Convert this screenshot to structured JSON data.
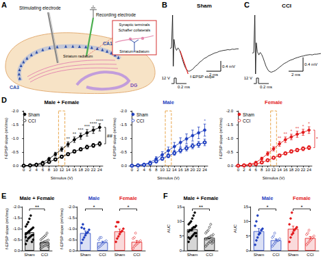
{
  "panels": [
    "A",
    "B",
    "C",
    "D",
    "E",
    "F"
  ],
  "diagram": {
    "stimulating_electrode": "Stimulating electrode",
    "recording_electrode": "Recording electrode",
    "ca1": "CA1",
    "ca3": "CA3",
    "dg": "DG",
    "layer": "Striatum radiatum",
    "inset": [
      "Synaptic terminals",
      "Schaffer collaterals",
      "Striatum radiatum"
    ]
  },
  "chart_data": [
    {
      "type": "line",
      "title": "Sham",
      "color": "#000000",
      "tick_labels": false,
      "x": [
        0,
        0.2,
        0.35,
        0.45,
        0.55,
        0.7,
        0.9,
        1.1,
        1.3,
        1.5,
        1.7,
        1.9,
        2.1,
        2.3,
        2.6,
        2.9,
        3.2,
        3.5,
        3.8,
        4.1,
        4.4,
        4.7,
        5.0,
        5.3,
        5.6,
        5.9,
        6.2,
        6.5,
        6.8,
        7.1,
        7.4,
        7.7,
        8.0,
        8.3,
        8.6,
        8.9,
        9.2,
        9.5
      ],
      "values": [
        0,
        0.02,
        1.3,
        -0.7,
        0.35,
        0.05,
        -0.08,
        0.02,
        -0.06,
        -0.22,
        -0.42,
        -0.6,
        -0.74,
        -0.84,
        -0.9,
        -0.86,
        -0.8,
        -0.7,
        -0.64,
        -0.54,
        -0.48,
        -0.4,
        -0.36,
        -0.3,
        -0.26,
        -0.22,
        -0.18,
        -0.16,
        -0.12,
        -0.1,
        -0.08,
        -0.07,
        -0.05,
        -0.06,
        -0.03,
        -0.04,
        -0.02,
        -0.02
      ],
      "annotations": [
        {
          "label": "f-EPSP slope",
          "x": [
            1.4,
            2.5
          ],
          "y": [
            -0.1,
            -1.0
          ]
        }
      ],
      "scale_bars": [
        {
          "axis": "x",
          "value": 2,
          "label": "2 ms"
        },
        {
          "axis": "y",
          "value": 0.4,
          "label": "0.4 mV"
        }
      ],
      "stimulus": [
        "12 V",
        "0.2 ms"
      ]
    },
    {
      "type": "line",
      "title": "CCI",
      "color": "#000000",
      "tick_labels": false,
      "x": [
        0,
        0.2,
        0.35,
        0.45,
        0.55,
        0.7,
        0.9,
        1.1,
        1.3,
        1.5,
        1.7,
        1.9,
        2.1,
        2.3,
        2.6,
        2.9,
        3.2,
        3.5,
        3.8,
        4.1,
        4.4,
        4.7,
        5.0,
        5.3,
        5.6,
        5.9,
        6.2,
        6.5,
        6.8,
        7.1,
        7.4,
        7.7,
        8.0,
        8.3,
        8.6,
        8.9,
        9.2,
        9.5
      ],
      "values": [
        0,
        0.02,
        1.1,
        -0.6,
        0.3,
        0.04,
        -0.05,
        0.02,
        -0.04,
        -0.14,
        -0.26,
        -0.38,
        -0.46,
        -0.52,
        -0.55,
        -0.53,
        -0.5,
        -0.45,
        -0.4,
        -0.35,
        -0.3,
        -0.27,
        -0.23,
        -0.2,
        -0.18,
        -0.15,
        -0.13,
        -0.11,
        -0.09,
        -0.08,
        -0.06,
        -0.05,
        -0.04,
        -0.05,
        -0.03,
        -0.03,
        -0.02,
        -0.01
      ],
      "annotations": [],
      "scale_bars": [
        {
          "axis": "x",
          "value": 2,
          "label": "2 ms"
        },
        {
          "axis": "y",
          "value": 0.4,
          "label": "0.4 mV"
        }
      ],
      "stimulus": [
        "12 V",
        "0.2 ms"
      ]
    },
    {
      "type": "line",
      "title": "Male + Female",
      "color": "#000000",
      "xlabel": "Stimulus (V)",
      "ylabel": "f-EPSP slope (mV/ms)",
      "x": [
        0,
        2,
        4,
        6,
        8,
        10,
        12,
        14,
        16,
        18,
        20,
        22,
        24
      ],
      "xlim": [
        -1,
        25
      ],
      "xticks": [
        0,
        2,
        4,
        6,
        8,
        10,
        12,
        14,
        16,
        18,
        20,
        22,
        24
      ],
      "ylim": [
        0,
        -2
      ],
      "yticks": [
        {
          "value": 0,
          "label": "0.0"
        },
        -0.5,
        {
          "value": -1,
          "label": "-1.0"
        },
        -1.5,
        {
          "value": -2,
          "label": "-2.0"
        }
      ],
      "legend": "top-left",
      "highlight_x": [
        11,
        13
      ],
      "series": [
        {
          "name": "Sham",
          "color": "#000000",
          "marker": "circle",
          "values": [
            0,
            -0.02,
            -0.05,
            -0.12,
            -0.25,
            -0.42,
            -0.6,
            -0.78,
            -0.95,
            -1.08,
            -1.2,
            -1.3,
            -1.4
          ],
          "errors": [
            0,
            0.01,
            0.02,
            0.03,
            0.05,
            0.07,
            0.08,
            0.09,
            0.1,
            0.11,
            0.12,
            0.12,
            0.13
          ]
        },
        {
          "name": "CCI",
          "color": "#000000",
          "marker": "open_circle",
          "values": [
            0,
            -0.01,
            -0.03,
            -0.07,
            -0.14,
            -0.23,
            -0.33,
            -0.42,
            -0.52,
            -0.6,
            -0.68,
            -0.74,
            -0.8
          ],
          "errors": [
            0,
            0.01,
            0.01,
            0.02,
            0.03,
            0.04,
            0.05,
            0.05,
            0.06,
            0.06,
            0.07,
            0.07,
            0.08
          ]
        }
      ],
      "annotations": [
        {
          "x": 14,
          "label": "**"
        },
        {
          "x": 16,
          "label": "**"
        },
        {
          "x": 18,
          "label": "***"
        },
        {
          "x": 20,
          "label": "***"
        },
        {
          "x": 22,
          "label": "****"
        },
        {
          "x": 24,
          "label": "****"
        }
      ],
      "group_annotation": "##"
    },
    {
      "type": "line",
      "title": "Male",
      "color": "#1f3fbf",
      "xlabel": "Stimulus (V)",
      "ylabel": "f-EPSP slope (mV/ms)",
      "x": [
        0,
        2,
        4,
        6,
        8,
        10,
        12,
        14,
        16,
        18,
        20,
        22,
        24
      ],
      "xlim": [
        -1,
        25
      ],
      "xticks": [
        0,
        2,
        4,
        6,
        8,
        10,
        12,
        14,
        16,
        18,
        20,
        22,
        24
      ],
      "ylim": [
        0,
        -2
      ],
      "yticks": [
        {
          "value": 0,
          "label": "0.0"
        },
        -0.5,
        {
          "value": -1,
          "label": "-1.0"
        },
        -1.5,
        {
          "value": -2,
          "label": "-2.0"
        }
      ],
      "legend": "top-left",
      "highlight_x": [
        11,
        13
      ],
      "series": [
        {
          "name": "Sham",
          "color": "#1f3fbf",
          "marker": "circle",
          "values": [
            0,
            -0.02,
            -0.05,
            -0.12,
            -0.25,
            -0.4,
            -0.55,
            -0.7,
            -0.85,
            -0.98,
            -1.1,
            -1.2,
            -1.3
          ],
          "errors": [
            0,
            0.01,
            0.03,
            0.05,
            0.08,
            0.11,
            0.13,
            0.15,
            0.17,
            0.18,
            0.2,
            0.21,
            0.22
          ]
        },
        {
          "name": "CCI",
          "color": "#1f3fbf",
          "marker": "open_circle",
          "values": [
            0,
            -0.01,
            -0.03,
            -0.08,
            -0.16,
            -0.26,
            -0.36,
            -0.46,
            -0.56,
            -0.64,
            -0.72,
            -0.78,
            -0.85
          ],
          "errors": [
            0,
            0.01,
            0.02,
            0.03,
            0.05,
            0.06,
            0.07,
            0.08,
            0.09,
            0.1,
            0.1,
            0.11,
            0.12
          ]
        }
      ],
      "annotations": [
        {
          "x": 24,
          "label": "*"
        }
      ]
    },
    {
      "type": "line",
      "title": "Female",
      "color": "#e31a1c",
      "xlabel": "Stimulus (V)",
      "ylabel": "f-EPSP slope (mV/ms)",
      "x": [
        0,
        2,
        4,
        6,
        8,
        10,
        12,
        14,
        16,
        18,
        20,
        22,
        24
      ],
      "xlim": [
        -1,
        25
      ],
      "xticks": [
        0,
        2,
        4,
        6,
        8,
        10,
        12,
        14,
        16,
        18,
        20,
        22,
        24
      ],
      "ylim": [
        0,
        -2
      ],
      "yticks": [
        {
          "value": 0,
          "label": "0.0"
        },
        -0.5,
        {
          "value": -1,
          "label": "-1.0"
        },
        -1.5,
        {
          "value": -2,
          "label": "-2.0"
        }
      ],
      "legend": "top-left",
      "highlight_x": [
        11,
        13
      ],
      "series": [
        {
          "name": "Sham",
          "color": "#e31a1c",
          "marker": "circle",
          "values": [
            0,
            -0.02,
            -0.05,
            -0.12,
            -0.26,
            -0.44,
            -0.62,
            -0.8,
            -0.95,
            -1.05,
            -1.15,
            -1.22,
            -1.3
          ],
          "errors": [
            0,
            0.01,
            0.02,
            0.03,
            0.05,
            0.07,
            0.08,
            0.09,
            0.1,
            0.1,
            0.11,
            0.11,
            0.12
          ]
        },
        {
          "name": "CCI",
          "color": "#e31a1c",
          "marker": "open_circle",
          "values": [
            0,
            -0.01,
            -0.03,
            -0.06,
            -0.12,
            -0.2,
            -0.29,
            -0.37,
            -0.45,
            -0.52,
            -0.57,
            -0.62,
            -0.66
          ],
          "errors": [
            0,
            0.01,
            0.01,
            0.02,
            0.03,
            0.04,
            0.04,
            0.05,
            0.05,
            0.06,
            0.06,
            0.07,
            0.07
          ]
        }
      ],
      "annotations": [
        {
          "x": 14,
          "label": "**"
        },
        {
          "x": 16,
          "label": "**"
        },
        {
          "x": 18,
          "label": "*"
        },
        {
          "x": 20,
          "label": "**"
        },
        {
          "x": 22,
          "label": "*"
        },
        {
          "x": 24,
          "label": "*"
        }
      ],
      "group_annotation": "*"
    },
    {
      "type": "bar",
      "title": "Male + Female",
      "color": "#000000",
      "ylabel": "f-EPSP slope (mV/ms)",
      "categories": [
        "Sham",
        "CCI"
      ],
      "ylim": [
        0,
        -2
      ],
      "yticks": [
        {
          "value": 0,
          "label": "0.0"
        },
        -0.5,
        {
          "value": -1,
          "label": "-1.0"
        },
        -1.5,
        {
          "value": -2,
          "label": "-2.0"
        }
      ],
      "values": [
        -0.84,
        -0.39
      ],
      "errors": [
        0.07,
        0.04
      ],
      "points": [
        [
          -0.3,
          -0.45,
          -0.55,
          -0.6,
          -0.65,
          -0.7,
          -0.72,
          -0.75,
          -0.8,
          -0.85,
          -0.9,
          -0.95,
          -1.0,
          -1.05,
          -1.1,
          -1.2,
          -1.3,
          -1.45,
          -1.6,
          -0.4,
          -0.5,
          -0.62
        ],
        [
          -0.1,
          -0.15,
          -0.2,
          -0.22,
          -0.25,
          -0.28,
          -0.3,
          -0.32,
          -0.35,
          -0.38,
          -0.4,
          -0.42,
          -0.45,
          -0.48,
          -0.5,
          -0.55,
          -0.6,
          -0.65,
          -0.7,
          -0.8,
          -0.18,
          -0.27
        ]
      ],
      "annotations": [
        {
          "between": [
            0,
            1
          ],
          "label": "**"
        }
      ]
    },
    {
      "type": "bar",
      "ylabel": "f-EPSP slope (mV/ms)",
      "categories": [
        "Sham",
        "CCI",
        "Sham",
        "CCI"
      ],
      "ylim": [
        0,
        -2
      ],
      "yticks": [
        {
          "value": 0,
          "label": "0.0"
        },
        -0.5,
        {
          "value": -1,
          "label": "-1.0"
        },
        -1.5,
        {
          "value": -2,
          "label": "-2.0"
        }
      ],
      "series": [
        {
          "name": "Male",
          "color": "#1f3fbf",
          "values": [
            -0.8,
            -0.38,
            null,
            null
          ],
          "errors": [
            0.1,
            0.05,
            null,
            null
          ],
          "points": [
            [
              -0.35,
              -0.5,
              -0.6,
              -0.7,
              -0.8,
              -0.85,
              -0.95,
              -1.05,
              -1.2,
              -1.0
            ],
            [
              -0.15,
              -0.2,
              -0.25,
              -0.3,
              -0.35,
              -0.4,
              -0.45,
              -0.5,
              -0.6,
              -0.6
            ],
            [],
            []
          ]
        },
        {
          "name": "Female",
          "color": "#e31a1c",
          "values": [
            null,
            null,
            -0.88,
            -0.4
          ],
          "errors": [
            null,
            null,
            0.1,
            0.06
          ],
          "points": [
            [],
            [],
            [
              -0.4,
              -0.55,
              -0.65,
              -0.75,
              -0.85,
              -0.9,
              -1.0,
              -1.1,
              -1.3,
              -1.3
            ],
            [
              -0.1,
              -0.2,
              -0.25,
              -0.3,
              -0.35,
              -0.4,
              -0.45,
              -0.55,
              -0.6,
              -0.8
            ]
          ]
        }
      ],
      "annotations": [
        {
          "between": [
            0,
            1
          ],
          "label": "*"
        },
        {
          "between": [
            2,
            3
          ],
          "label": "*"
        }
      ]
    },
    {
      "type": "bar",
      "title": "Male + Female",
      "color": "#000000",
      "ylabel": "AUC",
      "categories": [
        "Sham",
        "CCI"
      ],
      "ylim": [
        0,
        15
      ],
      "yticks": [
        0,
        5,
        10,
        15
      ],
      "values": [
        7.3,
        4.4
      ],
      "errors": [
        0.55,
        0.4
      ],
      "points": [
        [
          3,
          4,
          4.5,
          5,
          5.5,
          6,
          6,
          6.5,
          7,
          7,
          7.5,
          8,
          8,
          8.5,
          9,
          9.5,
          10,
          11,
          12,
          13,
          5,
          4.5
        ],
        [
          1.5,
          2,
          2.5,
          3,
          3,
          3.5,
          3.5,
          4,
          4,
          4.5,
          4.5,
          5,
          5,
          5.5,
          6,
          6.5,
          7,
          8,
          9,
          2.5,
          3,
          4
        ]
      ],
      "annotations": [
        {
          "between": [
            0,
            1
          ],
          "label": "**"
        }
      ]
    },
    {
      "type": "bar",
      "ylabel": "AUC",
      "categories": [
        "Sham",
        "CCI",
        "Sham",
        "CCI"
      ],
      "ylim": [
        0,
        15
      ],
      "yticks": [
        0,
        5,
        10,
        15
      ],
      "series": [
        {
          "name": "Male",
          "color": "#1f3fbf",
          "values": [
            6.65,
            3.55,
            null,
            null
          ],
          "errors": [
            0.9,
            0.45,
            null,
            null
          ],
          "points": [
            [
              2,
              3.5,
              4.5,
              5.5,
              6,
              7,
              7.5,
              8.5,
              10,
              12
            ],
            [
              1.5,
              2,
              2.5,
              3,
              3.5,
              3.5,
              4,
              4.5,
              5,
              6
            ],
            [],
            []
          ]
        },
        {
          "name": "Female",
          "color": "#e31a1c",
          "values": [
            null,
            null,
            7.45,
            4.3
          ],
          "errors": [
            null,
            null,
            0.95,
            0.5
          ],
          "points": [
            [],
            [],
            [
              3,
              4.5,
              5.5,
              6,
              7,
              7.5,
              8,
              9,
              11,
              13
            ],
            [
              2,
              2.5,
              3,
              3.5,
              4,
              4.5,
              5,
              5.5,
              6,
              7
            ]
          ]
        }
      ],
      "annotations": [
        {
          "between": [
            0,
            1
          ],
          "label": "*"
        },
        {
          "between": [
            2,
            3
          ],
          "label": "*"
        }
      ]
    }
  ]
}
